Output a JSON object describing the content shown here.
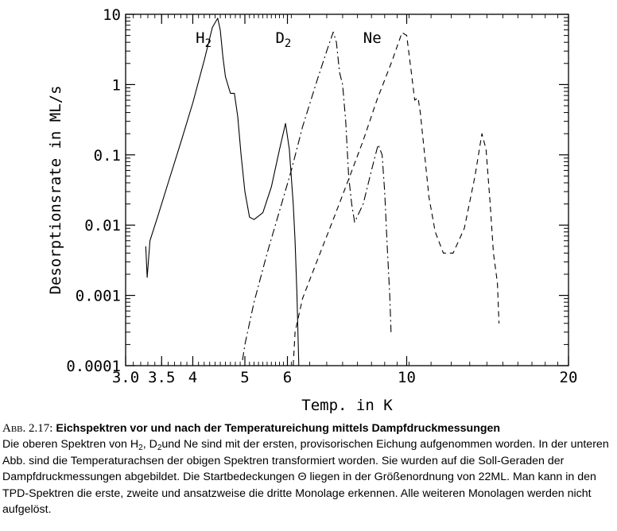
{
  "chart_data": {
    "type": "line",
    "xlabel": "Temp. in K",
    "ylabel": "Desorptionsrate in ML/s",
    "x_scale": "log",
    "y_scale": "log",
    "xlim": [
      3.0,
      20
    ],
    "ylim": [
      0.0001,
      10
    ],
    "x_ticks": [
      "3.0",
      "3.5",
      "4",
      "5",
      "6",
      "10",
      "20"
    ],
    "y_ticks": [
      "10",
      "1",
      "0.1",
      "0.01",
      "0.001",
      "0.0001"
    ],
    "series": [
      {
        "name": "H2",
        "style": "solid",
        "points": [
          [
            3.27,
            0.005
          ],
          [
            3.29,
            0.0018
          ],
          [
            3.33,
            0.006
          ],
          [
            3.45,
            0.014
          ],
          [
            3.6,
            0.04
          ],
          [
            3.8,
            0.15
          ],
          [
            4.0,
            0.55
          ],
          [
            4.2,
            2.2
          ],
          [
            4.35,
            6.5
          ],
          [
            4.45,
            8.8
          ],
          [
            4.5,
            6
          ],
          [
            4.55,
            2.5
          ],
          [
            4.6,
            1.3
          ],
          [
            4.7,
            0.75
          ],
          [
            4.78,
            0.75
          ],
          [
            4.85,
            0.35
          ],
          [
            4.92,
            0.1
          ],
          [
            5.0,
            0.03
          ],
          [
            5.1,
            0.013
          ],
          [
            5.2,
            0.012
          ],
          [
            5.4,
            0.015
          ],
          [
            5.6,
            0.035
          ],
          [
            5.8,
            0.12
          ],
          [
            5.95,
            0.28
          ],
          [
            6.05,
            0.12
          ],
          [
            6.15,
            0.02
          ],
          [
            6.2,
            0.006
          ],
          [
            6.25,
            0.001
          ],
          [
            6.3,
            0.0001
          ]
        ]
      },
      {
        "name": "D2",
        "style": "dashdot",
        "points": [
          [
            4.95,
            0.00012
          ],
          [
            5.0,
            0.0002
          ],
          [
            5.2,
            0.0008
          ],
          [
            5.5,
            0.004
          ],
          [
            5.8,
            0.016
          ],
          [
            6.1,
            0.06
          ],
          [
            6.4,
            0.25
          ],
          [
            6.8,
            1.1
          ],
          [
            7.1,
            3
          ],
          [
            7.3,
            5.6
          ],
          [
            7.4,
            4
          ],
          [
            7.5,
            1.5
          ],
          [
            7.6,
            1
          ],
          [
            7.7,
            0.3
          ],
          [
            7.8,
            0.05
          ],
          [
            7.9,
            0.02
          ],
          [
            8.0,
            0.011
          ],
          [
            8.3,
            0.02
          ],
          [
            8.6,
            0.06
          ],
          [
            8.85,
            0.14
          ],
          [
            9.0,
            0.1
          ],
          [
            9.1,
            0.03
          ],
          [
            9.2,
            0.005
          ],
          [
            9.3,
            0.001
          ],
          [
            9.35,
            0.0003
          ]
        ]
      },
      {
        "name": "Ne",
        "style": "dashed",
        "points": [
          [
            6.15,
            0.0001
          ],
          [
            6.2,
            0.0003
          ],
          [
            6.4,
            0.0009
          ],
          [
            6.8,
            0.003
          ],
          [
            7.3,
            0.012
          ],
          [
            7.8,
            0.045
          ],
          [
            8.3,
            0.16
          ],
          [
            8.8,
            0.6
          ],
          [
            9.4,
            2.2
          ],
          [
            9.8,
            5.5
          ],
          [
            10.0,
            5
          ],
          [
            10.2,
            1.5
          ],
          [
            10.35,
            0.6
          ],
          [
            10.5,
            0.65
          ],
          [
            10.6,
            0.4
          ],
          [
            10.8,
            0.1
          ],
          [
            11.0,
            0.025
          ],
          [
            11.3,
            0.008
          ],
          [
            11.7,
            0.004
          ],
          [
            12.2,
            0.004
          ],
          [
            12.8,
            0.009
          ],
          [
            13.4,
            0.05
          ],
          [
            13.8,
            0.2
          ],
          [
            14.05,
            0.12
          ],
          [
            14.3,
            0.02
          ],
          [
            14.5,
            0.004
          ],
          [
            14.75,
            0.0015
          ],
          [
            14.85,
            0.0004
          ]
        ]
      }
    ]
  },
  "caption": {
    "label": "Abb. 2.17:",
    "title": "Eichspektren vor und nach der Temperatureichung mittels Dampfdruckmessungen",
    "text_1": "Die oberen Spektren von H",
    "sub_1": "2",
    "text_2": ", D",
    "sub_2": "2",
    "text_3": "und Ne sind mit der ersten, provisorischen Eichung aufgenommen worden. In der unteren Abb. sind die Temperaturachsen der obigen Spektren transformiert worden. Sie wurden auf die Soll-Geraden der Dampfdruckmessungen abgebildet. Die Startbedeckungen Θ liegen in der Größenordnung von 22ML. Man kann in den TPD-Spektren die erste, zweite und ansatzweise die dritte Monolage erkennen. Alle weiteren Monolagen werden nicht aufgelöst."
  }
}
